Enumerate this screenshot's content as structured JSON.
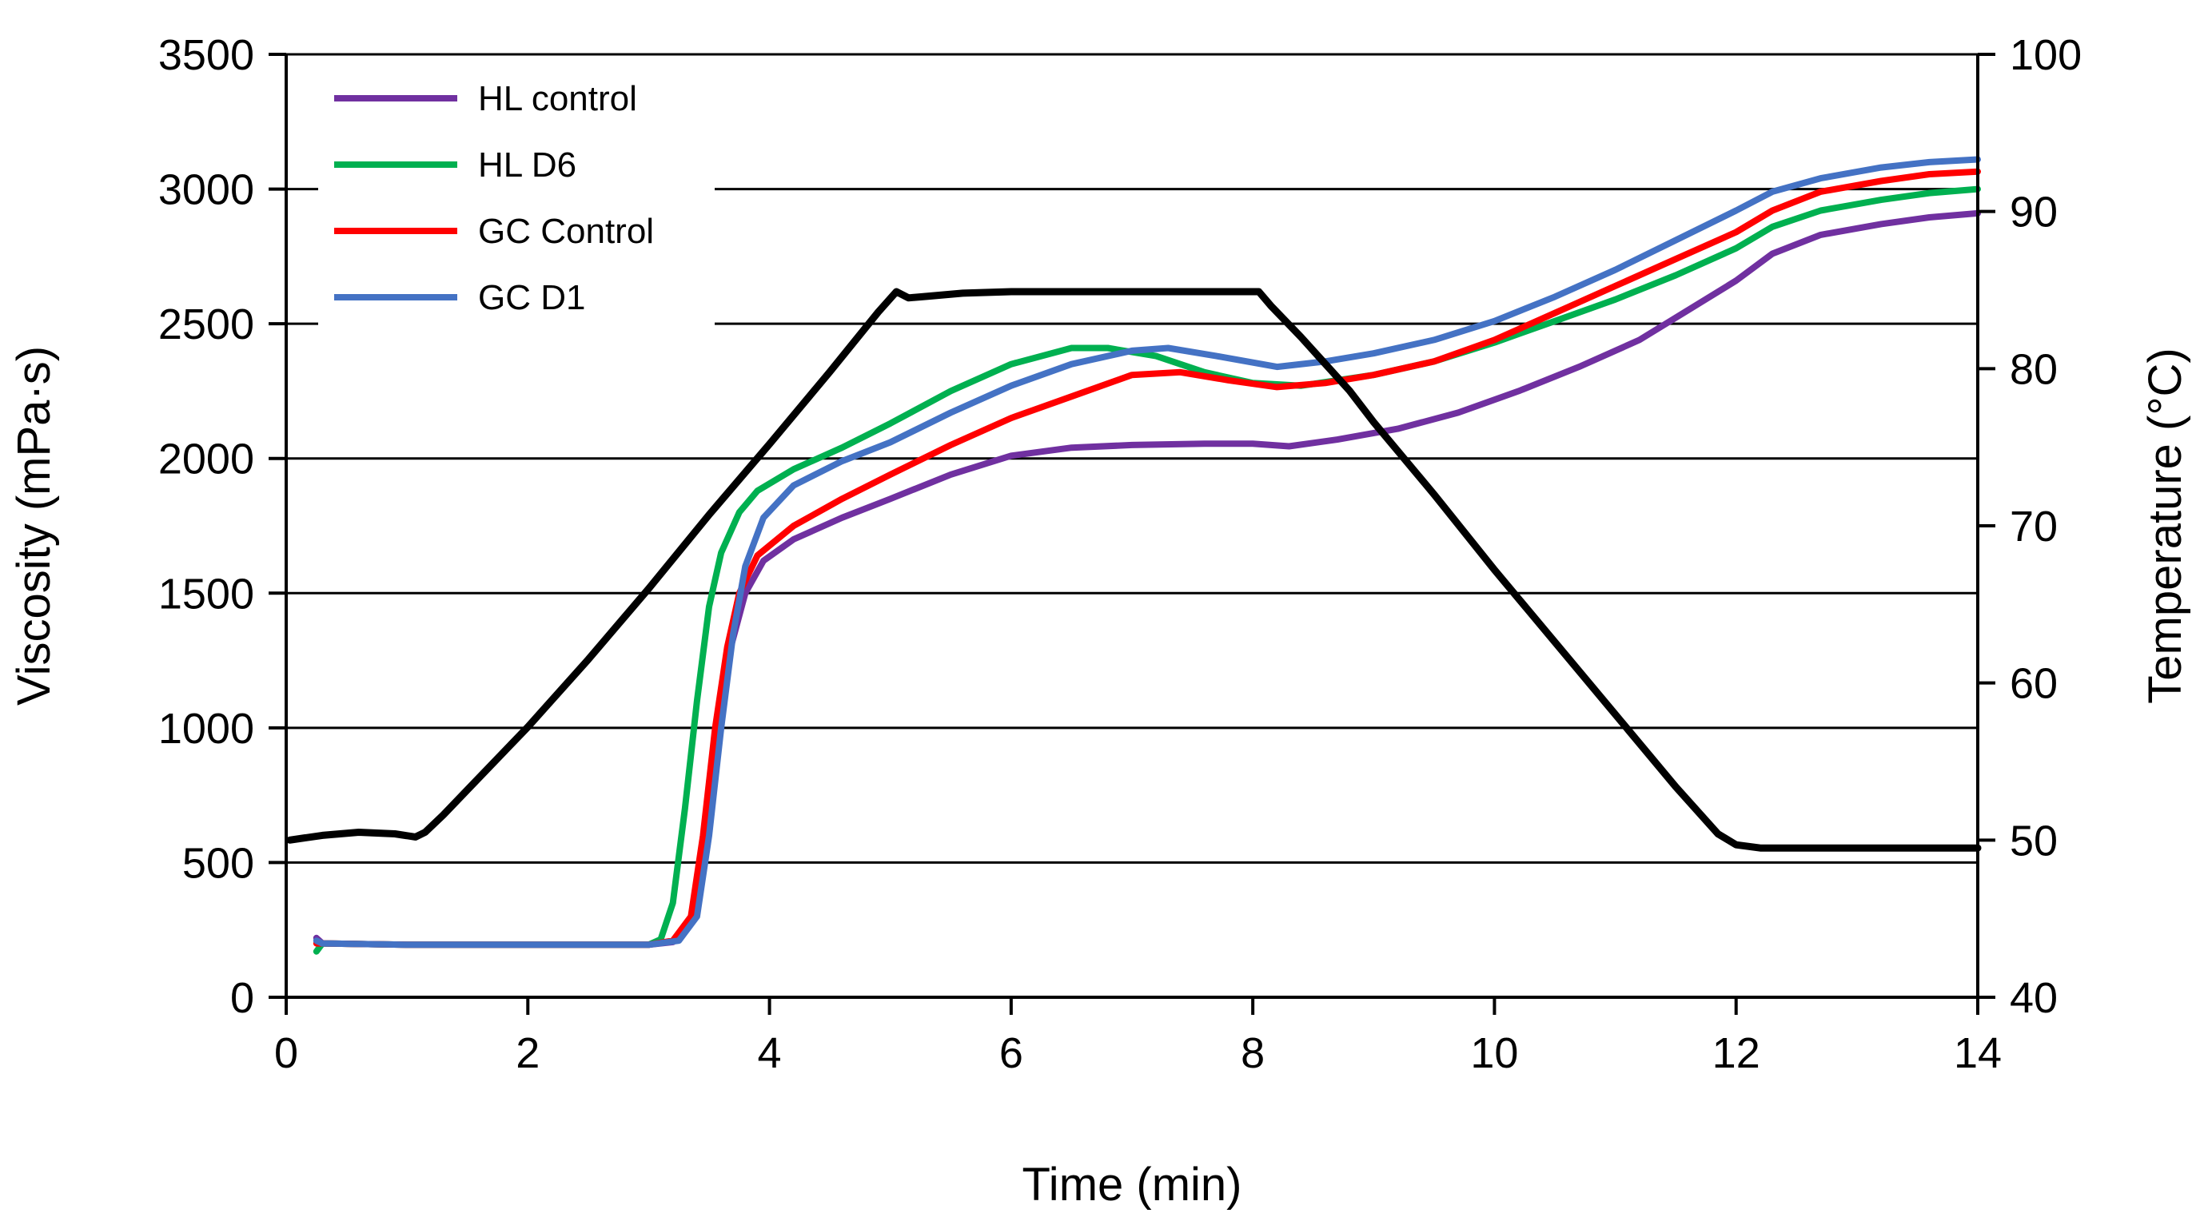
{
  "chart_data": {
    "type": "line",
    "title": "",
    "xlabel": "Time (min)",
    "ylabel_left": "Viscosity (mPa·s)",
    "ylabel_right": "Temperature (°C)",
    "xlim": [
      0,
      14
    ],
    "ylim_left": [
      0,
      3500
    ],
    "ylim_right": [
      40,
      100
    ],
    "x_ticks": [
      "0",
      "2",
      "4",
      "6",
      "8",
      "10",
      "12",
      "14"
    ],
    "y_left_ticks": [
      "0",
      "500",
      "1000",
      "1500",
      "2000",
      "2500",
      "3000",
      "3500"
    ],
    "y_right_ticks": [
      "40",
      "50",
      "60",
      "70",
      "80",
      "90",
      "100"
    ],
    "grid": "horizontal",
    "legend_position": "top-left",
    "series": [
      {
        "name": "HL control",
        "axis": "left",
        "color": "#7030A0",
        "points": [
          [
            0.25,
            220
          ],
          [
            0.3,
            200
          ],
          [
            1,
            195
          ],
          [
            2,
            195
          ],
          [
            3,
            195
          ],
          [
            3.2,
            205
          ],
          [
            3.35,
            280
          ],
          [
            3.45,
            550
          ],
          [
            3.55,
            950
          ],
          [
            3.65,
            1250
          ],
          [
            3.8,
            1500
          ],
          [
            3.95,
            1620
          ],
          [
            4.2,
            1700
          ],
          [
            4.6,
            1780
          ],
          [
            5,
            1850
          ],
          [
            5.5,
            1940
          ],
          [
            6,
            2010
          ],
          [
            6.5,
            2040
          ],
          [
            7,
            2050
          ],
          [
            7.6,
            2055
          ],
          [
            8,
            2055
          ],
          [
            8.3,
            2045
          ],
          [
            8.7,
            2070
          ],
          [
            9.2,
            2110
          ],
          [
            9.7,
            2170
          ],
          [
            10.2,
            2250
          ],
          [
            10.7,
            2340
          ],
          [
            11.2,
            2440
          ],
          [
            11.6,
            2550
          ],
          [
            12,
            2660
          ],
          [
            12.3,
            2760
          ],
          [
            12.7,
            2830
          ],
          [
            13.2,
            2870
          ],
          [
            13.6,
            2895
          ],
          [
            14,
            2910
          ]
        ]
      },
      {
        "name": "HL D6",
        "axis": "left",
        "color": "#00B050",
        "points": [
          [
            0.25,
            170
          ],
          [
            0.3,
            200
          ],
          [
            1,
            195
          ],
          [
            2,
            195
          ],
          [
            3,
            195
          ],
          [
            3.1,
            215
          ],
          [
            3.2,
            350
          ],
          [
            3.3,
            700
          ],
          [
            3.4,
            1100
          ],
          [
            3.5,
            1450
          ],
          [
            3.6,
            1650
          ],
          [
            3.75,
            1800
          ],
          [
            3.9,
            1880
          ],
          [
            4.2,
            1960
          ],
          [
            4.6,
            2040
          ],
          [
            5,
            2130
          ],
          [
            5.5,
            2250
          ],
          [
            6,
            2350
          ],
          [
            6.5,
            2410
          ],
          [
            6.8,
            2410
          ],
          [
            7.2,
            2380
          ],
          [
            7.6,
            2320
          ],
          [
            8,
            2280
          ],
          [
            8.4,
            2270
          ],
          [
            9,
            2310
          ],
          [
            9.5,
            2360
          ],
          [
            10,
            2430
          ],
          [
            10.5,
            2510
          ],
          [
            11,
            2590
          ],
          [
            11.5,
            2680
          ],
          [
            12,
            2780
          ],
          [
            12.3,
            2860
          ],
          [
            12.7,
            2920
          ],
          [
            13.2,
            2960
          ],
          [
            13.6,
            2985
          ],
          [
            14,
            3000
          ]
        ]
      },
      {
        "name": "GC Control",
        "axis": "left",
        "color": "#FF0000",
        "points": [
          [
            0.25,
            200
          ],
          [
            0.3,
            200
          ],
          [
            1,
            195
          ],
          [
            2,
            195
          ],
          [
            3,
            195
          ],
          [
            3.2,
            210
          ],
          [
            3.35,
            300
          ],
          [
            3.45,
            600
          ],
          [
            3.55,
            1000
          ],
          [
            3.65,
            1300
          ],
          [
            3.75,
            1500
          ],
          [
            3.9,
            1640
          ],
          [
            4.2,
            1750
          ],
          [
            4.6,
            1850
          ],
          [
            5,
            1940
          ],
          [
            5.5,
            2050
          ],
          [
            6,
            2150
          ],
          [
            6.5,
            2230
          ],
          [
            7,
            2310
          ],
          [
            7.4,
            2320
          ],
          [
            7.8,
            2290
          ],
          [
            8.2,
            2265
          ],
          [
            8.6,
            2280
          ],
          [
            9,
            2310
          ],
          [
            9.5,
            2360
          ],
          [
            10,
            2440
          ],
          [
            10.5,
            2540
          ],
          [
            11,
            2640
          ],
          [
            11.5,
            2740
          ],
          [
            12,
            2840
          ],
          [
            12.3,
            2920
          ],
          [
            12.7,
            2990
          ],
          [
            13.2,
            3030
          ],
          [
            13.6,
            3055
          ],
          [
            14,
            3065
          ]
        ]
      },
      {
        "name": "GC D1",
        "axis": "left",
        "color": "#4472C4",
        "points": [
          [
            0.25,
            210
          ],
          [
            0.3,
            200
          ],
          [
            1,
            195
          ],
          [
            2,
            195
          ],
          [
            3,
            195
          ],
          [
            3.25,
            210
          ],
          [
            3.4,
            300
          ],
          [
            3.5,
            600
          ],
          [
            3.6,
            1000
          ],
          [
            3.7,
            1350
          ],
          [
            3.8,
            1600
          ],
          [
            3.95,
            1780
          ],
          [
            4.2,
            1900
          ],
          [
            4.6,
            1990
          ],
          [
            5,
            2060
          ],
          [
            5.5,
            2170
          ],
          [
            6,
            2270
          ],
          [
            6.5,
            2350
          ],
          [
            7,
            2400
          ],
          [
            7.3,
            2410
          ],
          [
            7.7,
            2380
          ],
          [
            8.2,
            2340
          ],
          [
            8.6,
            2360
          ],
          [
            9,
            2390
          ],
          [
            9.5,
            2440
          ],
          [
            10,
            2510
          ],
          [
            10.5,
            2600
          ],
          [
            11,
            2700
          ],
          [
            11.5,
            2810
          ],
          [
            12,
            2920
          ],
          [
            12.3,
            2990
          ],
          [
            12.7,
            3040
          ],
          [
            13.2,
            3080
          ],
          [
            13.6,
            3100
          ],
          [
            14,
            3110
          ]
        ]
      },
      {
        "name": "Temperature",
        "axis": "right",
        "color": "#000000",
        "points": [
          [
            0.03,
            50
          ],
          [
            0.3,
            50.3
          ],
          [
            0.6,
            50.5
          ],
          [
            0.9,
            50.4
          ],
          [
            1.07,
            50.2
          ],
          [
            1.15,
            50.5
          ],
          [
            1.3,
            51.6
          ],
          [
            1.5,
            53.2
          ],
          [
            2,
            57.2
          ],
          [
            2.5,
            61.5
          ],
          [
            3,
            66
          ],
          [
            3.5,
            70.7
          ],
          [
            4,
            75.2
          ],
          [
            4.5,
            79.8
          ],
          [
            4.9,
            83.6
          ],
          [
            5.05,
            84.9
          ],
          [
            5.15,
            84.5
          ],
          [
            5.3,
            84.6
          ],
          [
            5.6,
            84.8
          ],
          [
            6,
            84.9
          ],
          [
            7,
            84.9
          ],
          [
            7.5,
            84.9
          ],
          [
            8,
            84.9
          ],
          [
            8.05,
            84.9
          ],
          [
            8.15,
            84
          ],
          [
            8.4,
            82
          ],
          [
            8.8,
            78.6
          ],
          [
            9,
            76.6
          ],
          [
            9.5,
            72
          ],
          [
            10,
            67.2
          ],
          [
            10.5,
            62.6
          ],
          [
            11,
            58
          ],
          [
            11.5,
            53.4
          ],
          [
            11.85,
            50.4
          ],
          [
            12,
            49.7
          ],
          [
            12.2,
            49.5
          ],
          [
            13,
            49.5
          ],
          [
            14,
            49.5
          ]
        ]
      }
    ]
  }
}
